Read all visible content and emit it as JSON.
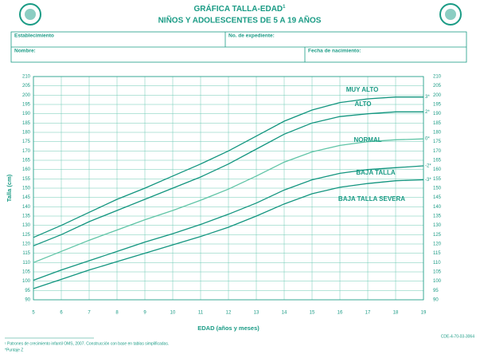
{
  "chart_data": {
    "type": "line",
    "title": "GRÁFICA TALLA-EDAD",
    "title_superscript": "1",
    "subtitle": "NIÑOS Y ADOLESCENTES DE 5 A 19 AÑOS",
    "form_fields": [
      "Establecimiento",
      "No. de expediente:",
      "Nombre:",
      "Fecha de nacimiento:"
    ],
    "x_label": "EDAD (años y meses)",
    "y_label": "Talla (cm)",
    "x": [
      5,
      6,
      7,
      8,
      9,
      10,
      11,
      12,
      13,
      14,
      15,
      16,
      17,
      18,
      19
    ],
    "xlim": [
      5,
      19
    ],
    "xticks": [
      5,
      6,
      7,
      8,
      9,
      10,
      11,
      12,
      13,
      14,
      15,
      16,
      17,
      18,
      19
    ],
    "ylim": [
      90,
      210
    ],
    "yticks": [
      90,
      95,
      100,
      105,
      110,
      115,
      120,
      125,
      130,
      135,
      140,
      145,
      150,
      155,
      160,
      165,
      170,
      175,
      180,
      185,
      190,
      195,
      200,
      205,
      210
    ],
    "grid": true,
    "series": [
      {
        "name": "MUY ALTO",
        "z_label": "3*",
        "color": "#12957f",
        "values": [
          123.5,
          130,
          137,
          144,
          150,
          156.5,
          163,
          170,
          178,
          186,
          192,
          196,
          198,
          199,
          199
        ]
      },
      {
        "name": "ALTO",
        "z_label": "2*",
        "color": "#12957f",
        "values": [
          119,
          125,
          132,
          138,
          144,
          150,
          156,
          163,
          171,
          179,
          185,
          188.5,
          190,
          191,
          191
        ]
      },
      {
        "name": "NORMAL",
        "z_label": "0*",
        "color": "#5fc4a6",
        "values": [
          110,
          116,
          122,
          127.5,
          133,
          138,
          143.5,
          149.5,
          156.5,
          164,
          169.5,
          173,
          175,
          176,
          176.5
        ]
      },
      {
        "name": "BAJA TALLA",
        "z_label": "-2*",
        "color": "#12957f",
        "values": [
          100.5,
          106,
          111,
          116,
          121,
          125.5,
          130.5,
          136,
          142,
          149,
          154.5,
          158,
          160,
          161,
          162
        ]
      },
      {
        "name": "BAJA TALLA SEVERA",
        "z_label": "-3*",
        "color": "#12957f",
        "values": [
          96,
          101,
          106,
          110.5,
          115,
          119.5,
          124,
          129,
          135,
          141.5,
          147,
          150.5,
          152.5,
          154,
          154.5
        ]
      }
    ],
    "footnote": "¹ Patrones de crecimiento infantil OMS, 2007. Construcción con base en tablas simplificadas.",
    "footnote2": "*Puntaje  Z",
    "code": "CDE-4-70-03-3064"
  }
}
